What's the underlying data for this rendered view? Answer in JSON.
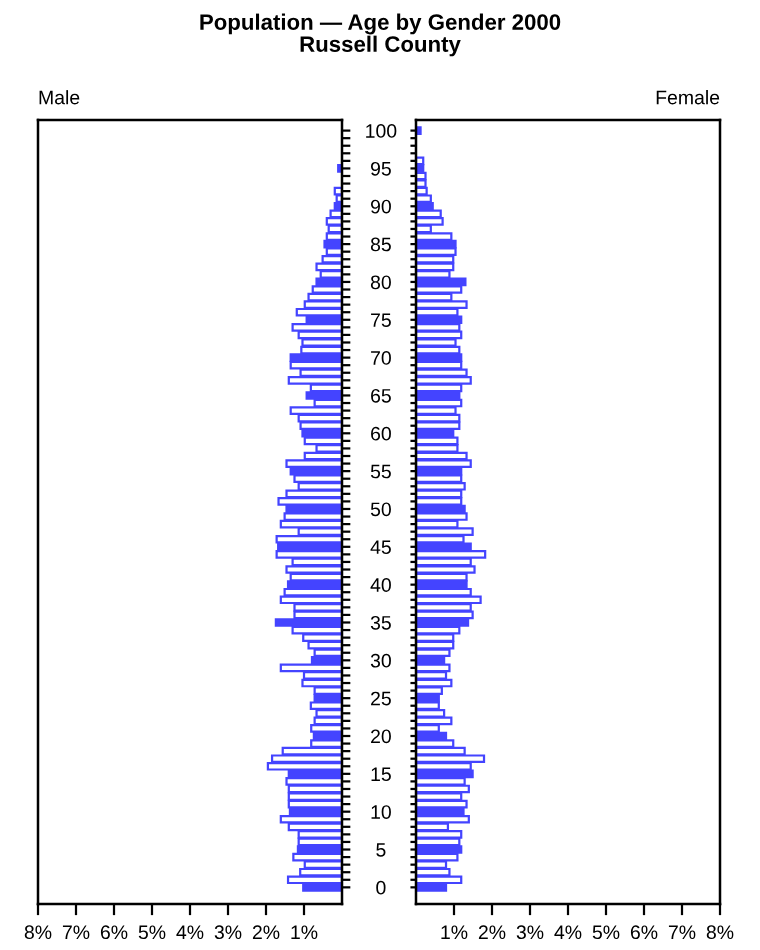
{
  "chart_data": [
    {
      "type": "bar",
      "orientation": "horizontal",
      "title": "Population — Age by Gender 2000",
      "subtitle": "Russell County",
      "categories": [
        "100",
        null,
        null,
        null,
        null,
        "95",
        null,
        null,
        null,
        null,
        "90",
        null,
        null,
        null,
        null,
        "85",
        null,
        null,
        null,
        null,
        "80",
        null,
        null,
        null,
        null,
        "75",
        null,
        null,
        null,
        null,
        "70",
        null,
        null,
        null,
        null,
        "65",
        null,
        null,
        null,
        null,
        "60",
        null,
        null,
        null,
        null,
        "55",
        null,
        null,
        null,
        null,
        "50",
        null,
        null,
        null,
        null,
        "45",
        null,
        null,
        null,
        null,
        "40",
        null,
        null,
        null,
        null,
        "35",
        null,
        null,
        null,
        null,
        "30",
        null,
        null,
        null,
        null,
        "25",
        null,
        null,
        null,
        null,
        "20",
        null,
        null,
        null,
        null,
        "15",
        null,
        null,
        null,
        null,
        "10",
        null,
        null,
        null,
        null,
        "5",
        null,
        null,
        null,
        null,
        "0"
      ],
      "series": [
        {
          "name": "Male",
          "color": "#4444ff",
          "values": [
            0,
            0,
            0,
            0,
            0,
            0.1,
            0,
            0,
            0.19,
            0.14,
            0.19,
            0.3,
            0.4,
            0.35,
            0.4,
            0.46,
            0.4,
            0.51,
            0.67,
            0.56,
            0.67,
            0.77,
            0.88,
            0.98,
            1.19,
            0.93,
            1.3,
            1.14,
            1.04,
            1.07,
            1.35,
            1.35,
            1.09,
            1.4,
            0.82,
            0.93,
            0.72,
            1.35,
            1.14,
            1.09,
            1.04,
            0.98,
            0.67,
            0.98,
            1.46,
            1.35,
            1.25,
            1.14,
            1.46,
            1.67,
            1.46,
            1.51,
            1.61,
            1.14,
            1.72,
            1.68,
            1.72,
            1.3,
            1.46,
            1.35,
            1.42,
            1.51,
            1.61,
            1.25,
            1.25,
            1.74,
            1.3,
            1.02,
            0.88,
            0.72,
            0.79,
            1.61,
            1.0,
            1.04,
            0.72,
            0.72,
            0.82,
            0.67,
            0.72,
            0.81,
            0.74,
            0.81,
            1.56,
            1.84,
            1.95,
            1.4,
            1.46,
            1.4,
            1.4,
            1.4,
            1.37,
            1.61,
            1.4,
            1.14,
            1.14,
            1.16,
            1.28,
            0.98,
            1.1,
            1.42,
            1.02
          ],
          "colors": [
            "#4444ff",
            "#ffffff",
            "#ffffff",
            "#ffffff",
            "#ffffff",
            "#4444ff",
            "#ffffff",
            "#ffffff",
            "#ffffff",
            "#ffffff",
            "#4444ff",
            "#ffffff",
            "#ffffff",
            "#ffffff",
            "#ffffff",
            "#4444ff",
            "#ffffff",
            "#ffffff",
            "#ffffff",
            "#ffffff",
            "#4444ff",
            "#ffffff",
            "#ffffff",
            "#ffffff",
            "#ffffff",
            "#4444ff",
            "#ffffff",
            "#ffffff",
            "#ffffff",
            "#ffffff",
            "#4444ff",
            "#ffffff",
            "#ffffff",
            "#ffffff",
            "#ffffff",
            "#4444ff",
            "#ffffff",
            "#ffffff",
            "#ffffff",
            "#ffffff",
            "#4444ff",
            "#ffffff",
            "#ffffff",
            "#ffffff",
            "#ffffff",
            "#4444ff",
            "#ffffff",
            "#ffffff",
            "#ffffff",
            "#ffffff",
            "#4444ff",
            "#ffffff",
            "#ffffff",
            "#ffffff",
            "#ffffff",
            "#4444ff",
            "#ffffff",
            "#ffffff",
            "#ffffff",
            "#ffffff",
            "#4444ff",
            "#ffffff",
            "#ffffff",
            "#ffffff",
            "#ffffff",
            "#4444ff",
            "#ffffff",
            "#ffffff",
            "#ffffff",
            "#ffffff",
            "#4444ff",
            "#ffffff",
            "#ffffff",
            "#ffffff",
            "#ffffff",
            "#4444ff",
            "#ffffff",
            "#ffffff",
            "#ffffff",
            "#ffffff",
            "#4444ff",
            "#ffffff",
            "#ffffff",
            "#ffffff",
            "#ffffff",
            "#4444ff",
            "#ffffff",
            "#ffffff",
            "#ffffff",
            "#ffffff",
            "#4444ff",
            "#ffffff",
            "#ffffff",
            "#ffffff",
            "#ffffff",
            "#4444ff",
            "#ffffff",
            "#ffffff",
            "#ffffff",
            "#ffffff",
            "#4444ff"
          ]
        }
      ],
      "xlim": [
        8,
        0
      ],
      "xticks": [
        {
          "value": 8,
          "label": "8%"
        },
        {
          "value": 7,
          "label": "7%"
        },
        {
          "value": 6,
          "label": "6%"
        },
        {
          "value": 5,
          "label": "5%"
        },
        {
          "value": 4,
          "label": "4%"
        },
        {
          "value": 3,
          "label": "3%"
        },
        {
          "value": 2,
          "label": "2%"
        },
        {
          "value": 1,
          "label": "1%"
        }
      ],
      "grid": false,
      "legend": false
    },
    {
      "type": "bar",
      "orientation": "horizontal",
      "tick_labels": "x",
      "categories": [
        "100",
        null,
        null,
        null,
        null,
        "95",
        null,
        null,
        null,
        null,
        "90",
        null,
        null,
        null,
        null,
        "85",
        null,
        null,
        null,
        null,
        "80",
        null,
        null,
        null,
        null,
        "75",
        null,
        null,
        null,
        null,
        "70",
        null,
        null,
        null,
        null,
        "65",
        null,
        null,
        null,
        null,
        "60",
        null,
        null,
        null,
        null,
        "55",
        null,
        null,
        null,
        null,
        "50",
        null,
        null,
        null,
        null,
        "45",
        null,
        null,
        null,
        null,
        "40",
        null,
        null,
        null,
        null,
        "35",
        null,
        null,
        null,
        null,
        "30",
        null,
        null,
        null,
        null,
        "25",
        null,
        null,
        null,
        null,
        "20",
        null,
        null,
        null,
        null,
        "15",
        null,
        null,
        null,
        null,
        "10",
        null,
        null,
        null,
        null,
        "5",
        null,
        null,
        null,
        null,
        "0"
      ],
      "series": [
        {
          "name": "Female",
          "color": "#4444ff",
          "values": [
            0.12,
            0,
            0,
            0,
            0.19,
            0.19,
            0.25,
            0.25,
            0.28,
            0.39,
            0.44,
            0.65,
            0.7,
            0.39,
            0.93,
            1.04,
            1.04,
            0.98,
            0.98,
            0.88,
            1.3,
            1.19,
            0.93,
            1.33,
            1.09,
            1.19,
            1.14,
            1.19,
            1.04,
            1.14,
            1.19,
            1.19,
            1.33,
            1.44,
            1.19,
            1.14,
            1.19,
            1.04,
            1.14,
            1.14,
            0.98,
            1.09,
            1.09,
            1.33,
            1.44,
            1.19,
            1.19,
            1.28,
            1.19,
            1.19,
            1.28,
            1.33,
            1.09,
            1.49,
            1.25,
            1.44,
            1.82,
            1.44,
            1.54,
            1.33,
            1.33,
            1.44,
            1.7,
            1.44,
            1.49,
            1.37,
            1.14,
            0.98,
            0.98,
            0.88,
            0.74,
            0.88,
            0.79,
            0.93,
            0.68,
            0.6,
            0.6,
            0.74,
            0.93,
            0.6,
            0.79,
            0.98,
            1.28,
            1.79,
            1.44,
            1.49,
            1.28,
            1.39,
            1.19,
            1.33,
            1.25,
            1.39,
            0.84,
            1.19,
            1.14,
            1.19,
            1.09,
            0.79,
            0.88,
            1.19,
            0.79
          ],
          "colors": [
            "#4444ff",
            "#ffffff",
            "#ffffff",
            "#ffffff",
            "#ffffff",
            "#4444ff",
            "#ffffff",
            "#ffffff",
            "#ffffff",
            "#ffffff",
            "#4444ff",
            "#ffffff",
            "#ffffff",
            "#ffffff",
            "#ffffff",
            "#4444ff",
            "#ffffff",
            "#ffffff",
            "#ffffff",
            "#ffffff",
            "#4444ff",
            "#ffffff",
            "#ffffff",
            "#ffffff",
            "#ffffff",
            "#4444ff",
            "#ffffff",
            "#ffffff",
            "#ffffff",
            "#ffffff",
            "#4444ff",
            "#ffffff",
            "#ffffff",
            "#ffffff",
            "#ffffff",
            "#4444ff",
            "#ffffff",
            "#ffffff",
            "#ffffff",
            "#ffffff",
            "#4444ff",
            "#ffffff",
            "#ffffff",
            "#ffffff",
            "#ffffff",
            "#4444ff",
            "#ffffff",
            "#ffffff",
            "#ffffff",
            "#ffffff",
            "#4444ff",
            "#ffffff",
            "#ffffff",
            "#ffffff",
            "#ffffff",
            "#4444ff",
            "#ffffff",
            "#ffffff",
            "#ffffff",
            "#ffffff",
            "#4444ff",
            "#ffffff",
            "#ffffff",
            "#ffffff",
            "#ffffff",
            "#4444ff",
            "#ffffff",
            "#ffffff",
            "#ffffff",
            "#ffffff",
            "#4444ff",
            "#ffffff",
            "#ffffff",
            "#ffffff",
            "#ffffff",
            "#4444ff",
            "#ffffff",
            "#ffffff",
            "#ffffff",
            "#ffffff",
            "#4444ff",
            "#ffffff",
            "#ffffff",
            "#ffffff",
            "#ffffff",
            "#4444ff",
            "#ffffff",
            "#ffffff",
            "#ffffff",
            "#ffffff",
            "#4444ff",
            "#ffffff",
            "#ffffff",
            "#ffffff",
            "#ffffff",
            "#4444ff",
            "#ffffff",
            "#ffffff",
            "#ffffff",
            "#ffffff",
            "#4444ff"
          ]
        }
      ],
      "xlim": [
        0,
        8
      ],
      "xticks": [
        {
          "value": 1,
          "label": "1%"
        },
        {
          "value": 2,
          "label": "2%"
        },
        {
          "value": 3,
          "label": "3%"
        },
        {
          "value": 4,
          "label": "4%"
        },
        {
          "value": 5,
          "label": "5%"
        },
        {
          "value": 6,
          "label": "6%"
        },
        {
          "value": 7,
          "label": "7%"
        },
        {
          "value": 8,
          "label": "8%"
        }
      ],
      "grid": false,
      "legend": false
    }
  ]
}
